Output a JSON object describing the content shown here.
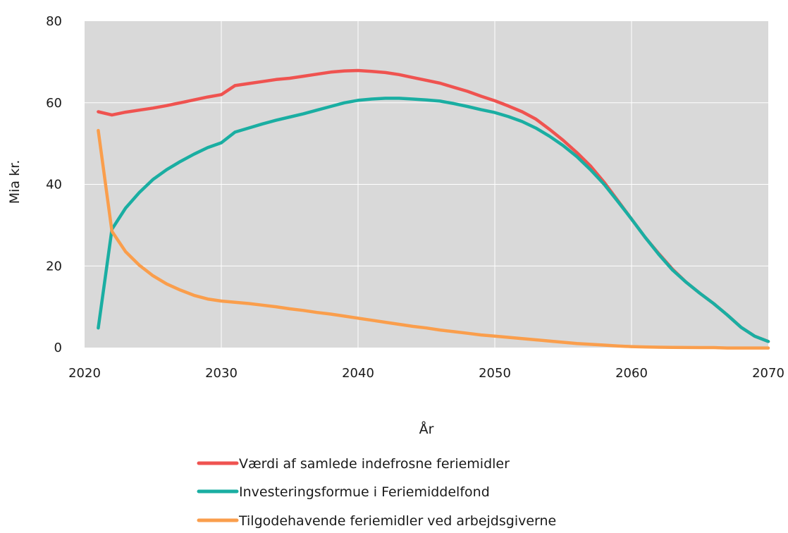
{
  "chart_data": {
    "type": "line",
    "title": "",
    "xlabel": "År",
    "ylabel": "Mia kr.",
    "xlim": [
      2020,
      2070
    ],
    "ylim": [
      0,
      80
    ],
    "x_ticks": [
      "2020",
      "2030",
      "2040",
      "2050",
      "2060",
      "2070"
    ],
    "y_ticks": [
      "0",
      "20",
      "40",
      "60",
      "80"
    ],
    "grid": true,
    "legend_position": "bottom",
    "background_color": "#d9d9d9",
    "series": [
      {
        "name": "Værdi af samlede indefrosne feriemidler",
        "color": "#ef5350",
        "x": [
          2021,
          2022,
          2023,
          2024,
          2025,
          2026,
          2027,
          2028,
          2029,
          2030,
          2031,
          2032,
          2033,
          2034,
          2035,
          2036,
          2037,
          2038,
          2039,
          2040,
          2041,
          2042,
          2043,
          2044,
          2045,
          2046,
          2047,
          2048,
          2049,
          2050,
          2051,
          2052,
          2053,
          2054,
          2055,
          2056,
          2057,
          2058,
          2059,
          2060,
          2061,
          2062,
          2063,
          2064,
          2065,
          2066,
          2067,
          2068,
          2069,
          2070
        ],
        "y": [
          57.8,
          57.0,
          57.7,
          58.2,
          58.7,
          59.3,
          60.0,
          60.7,
          61.4,
          62.0,
          64.2,
          64.7,
          65.2,
          65.7,
          66.0,
          66.5,
          67.0,
          67.5,
          67.8,
          67.9,
          67.7,
          67.4,
          66.9,
          66.2,
          65.5,
          64.8,
          63.8,
          62.8,
          61.6,
          60.5,
          59.2,
          57.8,
          56.0,
          53.5,
          50.8,
          47.8,
          44.5,
          40.5,
          36.0,
          31.5,
          27.0,
          23.0,
          19.2,
          16.0,
          13.3,
          10.8,
          8.0,
          5.0,
          2.8,
          1.5
        ]
      },
      {
        "name": "Investeringsformue i Feriemiddelfond",
        "color": "#1aaea2",
        "x": [
          2021,
          2022,
          2023,
          2024,
          2025,
          2026,
          2027,
          2028,
          2029,
          2030,
          2031,
          2032,
          2033,
          2034,
          2035,
          2036,
          2037,
          2038,
          2039,
          2040,
          2041,
          2042,
          2043,
          2044,
          2045,
          2046,
          2047,
          2048,
          2049,
          2050,
          2051,
          2052,
          2053,
          2054,
          2055,
          2056,
          2057,
          2058,
          2059,
          2060,
          2061,
          2062,
          2063,
          2064,
          2065,
          2066,
          2067,
          2068,
          2069,
          2070
        ],
        "y": [
          4.8,
          29.0,
          34.2,
          38.0,
          41.2,
          43.6,
          45.6,
          47.4,
          49.0,
          50.2,
          52.8,
          53.8,
          54.8,
          55.7,
          56.5,
          57.3,
          58.2,
          59.1,
          60.0,
          60.6,
          60.9,
          61.1,
          61.1,
          60.9,
          60.7,
          60.4,
          59.8,
          59.1,
          58.3,
          57.6,
          56.6,
          55.4,
          53.8,
          51.8,
          49.5,
          46.8,
          43.6,
          40.0,
          35.8,
          31.5,
          27.0,
          22.8,
          19.0,
          16.0,
          13.3,
          10.8,
          8.0,
          5.0,
          2.8,
          1.5
        ]
      },
      {
        "name": "Tilgodehavende feriemidler ved arbejdsgiverne",
        "color": "#fa9e4c",
        "x": [
          2021,
          2022,
          2023,
          2024,
          2025,
          2026,
          2027,
          2028,
          2029,
          2030,
          2031,
          2032,
          2033,
          2034,
          2035,
          2036,
          2037,
          2038,
          2039,
          2040,
          2041,
          2042,
          2043,
          2044,
          2045,
          2046,
          2047,
          2048,
          2049,
          2050,
          2051,
          2052,
          2053,
          2054,
          2055,
          2056,
          2057,
          2058,
          2059,
          2060,
          2061,
          2062,
          2063,
          2064,
          2065,
          2066,
          2067,
          2068,
          2069,
          2070
        ],
        "y": [
          53.2,
          28.5,
          23.5,
          20.2,
          17.6,
          15.6,
          14.1,
          12.8,
          11.9,
          11.4,
          11.1,
          10.8,
          10.4,
          10.0,
          9.5,
          9.1,
          8.6,
          8.2,
          7.7,
          7.2,
          6.7,
          6.2,
          5.7,
          5.2,
          4.8,
          4.3,
          3.9,
          3.5,
          3.1,
          2.8,
          2.5,
          2.2,
          1.9,
          1.6,
          1.3,
          1.0,
          0.8,
          0.6,
          0.4,
          0.25,
          0.15,
          0.08,
          0.04,
          0.02,
          0.0,
          0.0,
          -0.1,
          -0.1,
          -0.1,
          -0.1
        ]
      }
    ]
  }
}
